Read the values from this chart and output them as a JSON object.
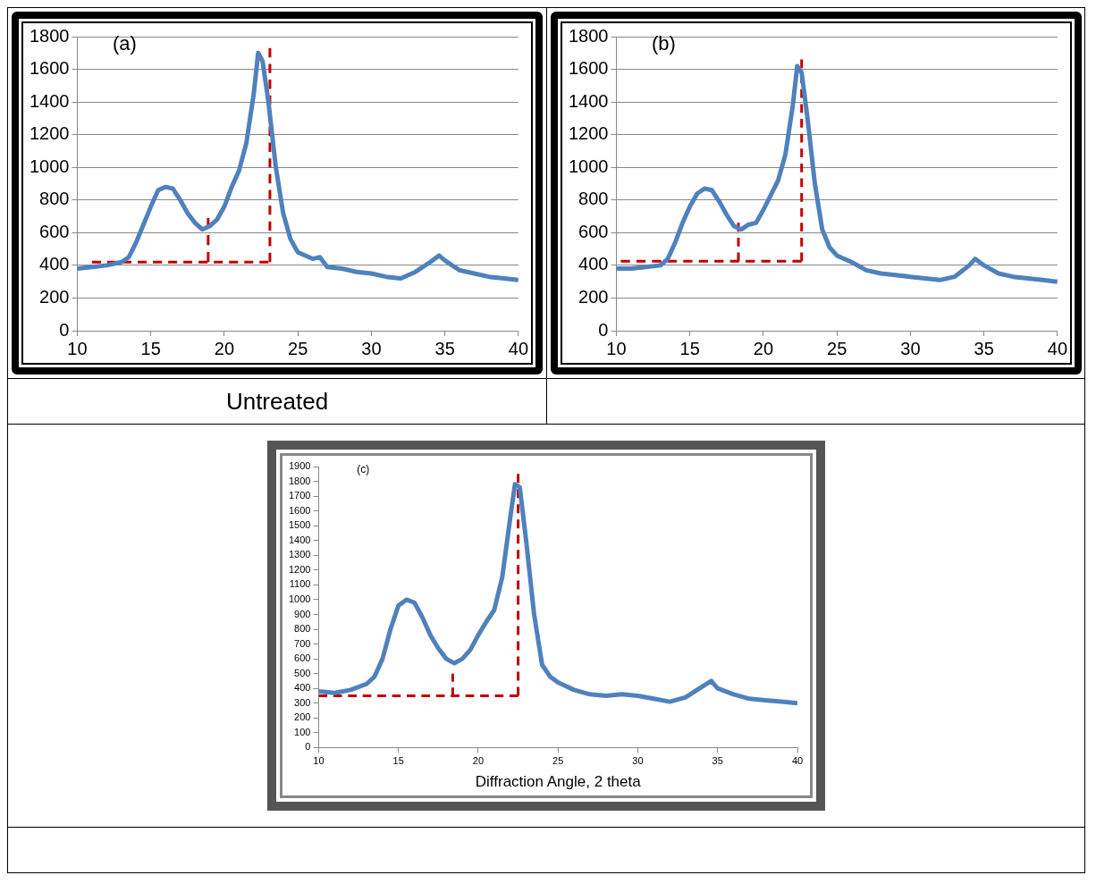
{
  "chart_data": [
    {
      "type": "line",
      "title": "(a)",
      "annotations": [
        "Untreated"
      ],
      "xlim": [
        10,
        40
      ],
      "xticks": [
        10,
        15,
        20,
        25,
        30,
        35,
        40
      ],
      "ylim": [
        0,
        1800
      ],
      "yticks": [
        0,
        200,
        400,
        600,
        800,
        1000,
        1200,
        1400,
        1600,
        1800
      ],
      "grid": "y",
      "series": [
        {
          "color": "#4f81bd",
          "x": [
            10,
            11,
            12,
            13,
            13.5,
            14,
            14.5,
            15,
            15.5,
            16,
            16.5,
            17,
            17.5,
            18,
            18.5,
            19,
            19.5,
            20,
            20.5,
            21,
            21.5,
            22,
            22.3,
            22.6,
            23,
            23.5,
            24,
            24.5,
            25,
            26,
            26.5,
            27,
            28,
            29,
            30,
            31,
            32,
            33,
            34,
            34.6,
            35,
            36,
            37,
            38,
            39,
            40
          ],
          "values": [
            380,
            390,
            400,
            420,
            450,
            540,
            650,
            760,
            860,
            880,
            870,
            800,
            720,
            660,
            620,
            640,
            680,
            760,
            880,
            980,
            1150,
            1450,
            1700,
            1650,
            1400,
            1000,
            720,
            560,
            480,
            440,
            450,
            390,
            380,
            360,
            350,
            330,
            320,
            360,
            420,
            460,
            430,
            370,
            350,
            330,
            320,
            310
          ]
        },
        {
          "color": "#c00000",
          "line_style": "dashed",
          "x": [
            11,
            23
          ],
          "values": [
            420,
            420
          ]
        },
        {
          "color": "#c00000",
          "line_style": "dashed",
          "x": [
            18.9,
            18.9
          ],
          "values": [
            420,
            690
          ]
        },
        {
          "color": "#c00000",
          "line_style": "dashed",
          "x": [
            23.1,
            23.1
          ],
          "values": [
            420,
            1730
          ]
        }
      ]
    },
    {
      "type": "line",
      "title": "(b)",
      "xlim": [
        10,
        40
      ],
      "xticks": [
        10,
        15,
        20,
        25,
        30,
        35,
        40
      ],
      "ylim": [
        0,
        1800
      ],
      "yticks": [
        0,
        200,
        400,
        600,
        800,
        1000,
        1200,
        1400,
        1600,
        1800
      ],
      "grid": "y",
      "series": [
        {
          "color": "#4f81bd",
          "x": [
            10,
            11,
            12,
            13,
            13.5,
            14,
            14.5,
            15,
            15.5,
            16,
            16.5,
            17,
            17.5,
            18,
            18.5,
            19,
            19.5,
            20,
            20.5,
            21,
            21.5,
            22,
            22.3,
            22.6,
            23,
            23.5,
            24,
            24.5,
            25,
            26,
            27,
            28,
            29,
            30,
            31,
            32,
            33,
            34,
            34.4,
            35,
            36,
            37,
            38,
            39,
            40
          ],
          "values": [
            380,
            380,
            390,
            400,
            440,
            540,
            660,
            760,
            840,
            870,
            860,
            790,
            710,
            640,
            620,
            650,
            660,
            740,
            830,
            920,
            1080,
            1380,
            1620,
            1580,
            1300,
            900,
            620,
            510,
            460,
            420,
            370,
            350,
            340,
            330,
            320,
            310,
            330,
            400,
            440,
            400,
            350,
            330,
            320,
            310,
            300
          ]
        },
        {
          "color": "#c00000",
          "line_style": "dashed",
          "x": [
            10.3,
            22.6
          ],
          "values": [
            425,
            425
          ]
        },
        {
          "color": "#c00000",
          "line_style": "dashed",
          "x": [
            18.3,
            18.3
          ],
          "values": [
            425,
            660
          ]
        },
        {
          "color": "#c00000",
          "line_style": "dashed",
          "x": [
            22.6,
            22.6
          ],
          "values": [
            425,
            1660
          ]
        }
      ]
    },
    {
      "type": "line",
      "title": "(c)",
      "xlabel": "Diffraction Angle, 2 theta",
      "xlim": [
        10,
        40
      ],
      "xticks": [
        10,
        15,
        20,
        25,
        30,
        35,
        40
      ],
      "ylim": [
        0,
        1900
      ],
      "yticks": [
        0,
        100,
        200,
        300,
        400,
        500,
        600,
        700,
        800,
        900,
        1000,
        1100,
        1200,
        1300,
        1400,
        1500,
        1600,
        1700,
        1800,
        1900
      ],
      "series": [
        {
          "color": "#4f81bd",
          "x": [
            10,
            11,
            12,
            13,
            13.5,
            14,
            14.5,
            15,
            15.5,
            16,
            16.5,
            17,
            17.5,
            18,
            18.5,
            19,
            19.5,
            20,
            20.5,
            21,
            21.5,
            22,
            22.3,
            22.6,
            23,
            23.5,
            24,
            24.5,
            25,
            26,
            27,
            28,
            29,
            30,
            31,
            32,
            33,
            34,
            34.6,
            35,
            36,
            37,
            38,
            39,
            40
          ],
          "values": [
            380,
            370,
            390,
            430,
            480,
            600,
            800,
            960,
            1000,
            980,
            880,
            760,
            670,
            600,
            570,
            600,
            660,
            760,
            850,
            930,
            1150,
            1550,
            1780,
            1760,
            1400,
            900,
            560,
            480,
            440,
            390,
            360,
            350,
            360,
            350,
            330,
            310,
            340,
            410,
            450,
            400,
            360,
            330,
            320,
            310,
            300
          ]
        },
        {
          "color": "#c00000",
          "line_style": "dashed",
          "x": [
            10,
            22.5
          ],
          "values": [
            350,
            350
          ]
        },
        {
          "color": "#c00000",
          "line_style": "dashed",
          "x": [
            18.4,
            18.4
          ],
          "values": [
            350,
            500
          ]
        },
        {
          "color": "#c00000",
          "line_style": "dashed",
          "x": [
            22.5,
            22.5
          ],
          "values": [
            350,
            1850
          ]
        }
      ]
    }
  ]
}
